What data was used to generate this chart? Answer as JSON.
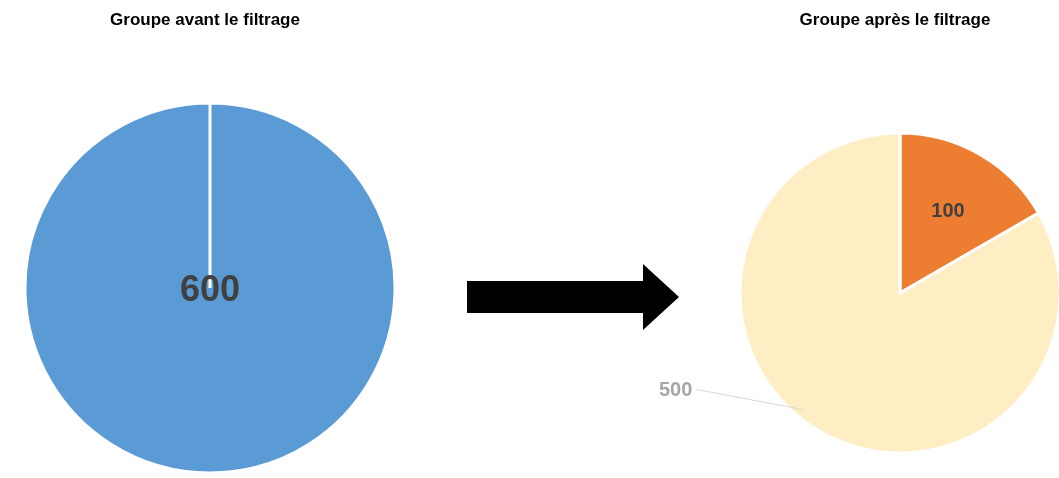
{
  "chart_data": [
    {
      "type": "pie",
      "title": "Groupe avant le filtrage",
      "categories": [
        null
      ],
      "values": [
        600
      ],
      "colors": [
        "#5b9bd5"
      ],
      "data_labels": true
    },
    {
      "type": "pie",
      "title": "Groupe après le filtrage",
      "categories": [
        null,
        null
      ],
      "values": [
        100,
        500
      ],
      "colors": [
        "#ed7d31",
        "#ffeec4"
      ],
      "data_labels": true
    }
  ]
}
